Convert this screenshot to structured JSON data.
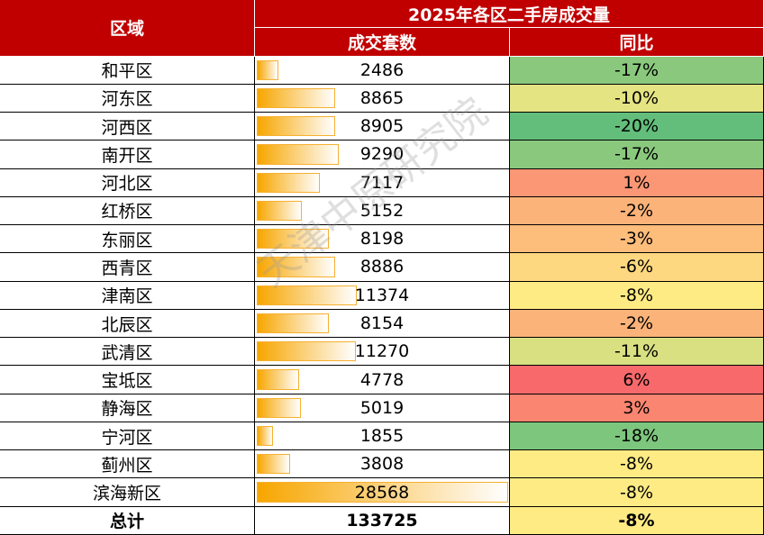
{
  "table": {
    "title": "2025年各区二手房成交量",
    "columns": [
      "区域",
      "成交套数",
      "同比"
    ],
    "rows": [
      [
        "和平区",
        "2486",
        "-17%"
      ],
      [
        "河东区",
        "8865",
        "-10%"
      ],
      [
        "河西区",
        "8905",
        "-20%"
      ],
      [
        "南开区",
        "9290",
        "-17%"
      ],
      [
        "河北区",
        "7117",
        "1%"
      ],
      [
        "红桥区",
        "5152",
        "-2%"
      ],
      [
        "东丽区",
        "8198",
        "-3%"
      ],
      [
        "西青区",
        "8886",
        "-6%"
      ],
      [
        "津南区",
        "11374",
        "-8%"
      ],
      [
        "北辰区",
        "8154",
        "-2%"
      ],
      [
        "武清区",
        "11270",
        "-11%"
      ],
      [
        "宝坻区",
        "4778",
        "6%"
      ],
      [
        "静海区",
        "5019",
        "3%"
      ],
      [
        "宁河区",
        "1855",
        "-18%"
      ],
      [
        "蓟州区",
        "3808",
        "-8%"
      ],
      [
        "滨海新区",
        "28568",
        "-8%"
      ]
    ],
    "total": [
      "总计",
      "133725",
      "-8%"
    ]
  },
  "watermark": "天津中原研究院"
}
